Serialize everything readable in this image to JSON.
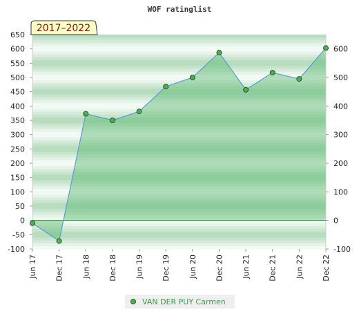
{
  "chart_data": {
    "type": "area",
    "title": "WOF ratinglist",
    "subtitle_badge": "2017–2022",
    "categories": [
      "Jun 17",
      "Dec 17",
      "Jun 18",
      "Dec 18",
      "Jun 19",
      "Dec 19",
      "Jun 20",
      "Dec 20",
      "Jun 21",
      "Dec 21",
      "Jun 22",
      "Dec 22"
    ],
    "series": [
      {
        "name": "VAN DER PUY Carmen",
        "values": [
          -10,
          -72,
          373,
          350,
          381,
          468,
          500,
          587,
          457,
          517,
          495,
          603
        ]
      }
    ],
    "y_left_ticks": [
      650,
      600,
      550,
      500,
      450,
      400,
      350,
      300,
      250,
      200,
      150,
      100,
      50,
      0,
      -50,
      -100
    ],
    "y_right_ticks": [
      600,
      500,
      400,
      300,
      200,
      100,
      0,
      -100
    ],
    "ylim": [
      -100,
      650
    ],
    "grid": true,
    "legend_position": "bottom-center",
    "colors": {
      "line": "#5b9bd5",
      "marker": "#4caf50",
      "area": "#5cb86e",
      "zero_line": "#2e8b3e",
      "band_dark": "#b7dcc0",
      "band_light": "#e6f3e8",
      "badge_bg": "#ffffc8",
      "legend_bg": "#eeeeee"
    }
  }
}
